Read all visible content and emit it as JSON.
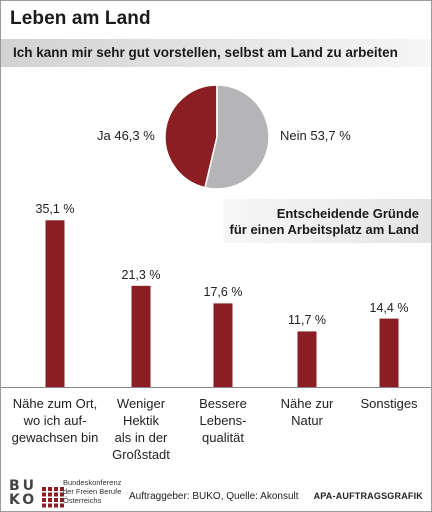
{
  "header": {
    "title": "Leben am Land",
    "subtitle": "Ich kann mir sehr gut vorstellen, selbst am Land zu arbeiten"
  },
  "colors": {
    "primary": "#8b1e22",
    "secondary": "#b5b5b8",
    "baseline": "#888888"
  },
  "chart_data": [
    {
      "type": "pie",
      "slices": [
        {
          "label": "Ja 46,3 %",
          "value": 46.3,
          "color": "#8b1e22"
        },
        {
          "label": "Nein 53,7 %",
          "value": 53.7,
          "color": "#b5b5b8"
        }
      ]
    },
    {
      "type": "bar",
      "title_line1": "Entscheidende Gründe",
      "title_line2": "für einen Arbeitsplatz am Land",
      "categories": [
        "Nähe zum Ort,\nwo ich auf-\ngewachsen bin",
        "Weniger\nHektik\nals in der\nGroßstadt",
        "Bessere\nLebens-\nqualität",
        "Nähe zur\nNatur",
        "Sonstiges"
      ],
      "values": [
        35.1,
        21.3,
        17.6,
        11.7,
        14.4
      ],
      "value_labels": [
        "35,1 %",
        "21,3 %",
        "17,6 %",
        "11,7 %",
        "14,4 %"
      ],
      "ylim": [
        0,
        40
      ],
      "grid": false
    }
  ],
  "footer": {
    "logo_line1": "BU",
    "logo_line2": "KO",
    "org_name": "Bundeskonferenz\nder Freien Berufe\nÖsterreichs",
    "source": "Auftraggeber: BUKO, Quelle: Akonsult",
    "agency": "APA-AUFTRAGSGRAFIK"
  }
}
